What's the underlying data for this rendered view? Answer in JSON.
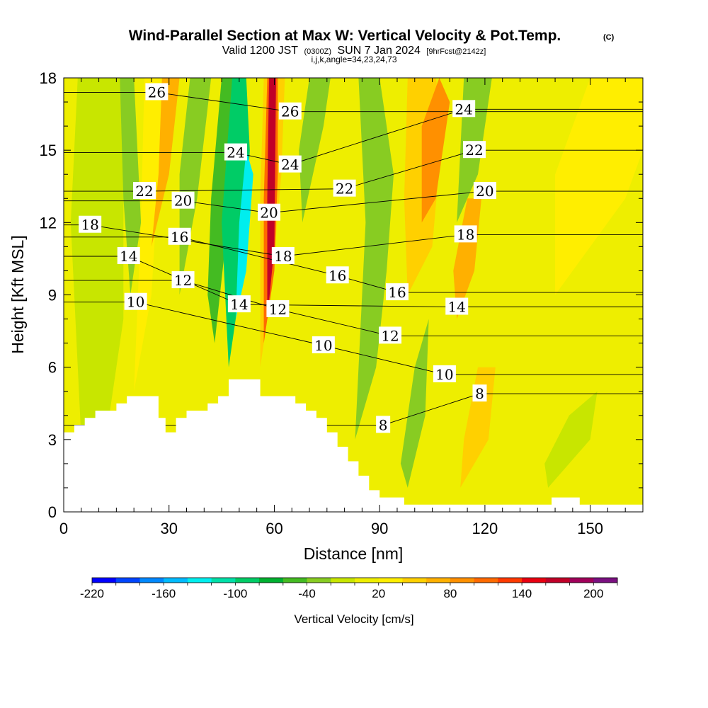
{
  "chart_data": {
    "type": "heatmap",
    "title": "Wind-Parallel Section at Max W: Vertical Velocity & Pot.Temp.",
    "title_mark": "(C)",
    "subtitle_parts": {
      "valid": "Valid 1200 JST",
      "utc": "(0300Z)",
      "date": "SUN 7 Jan 2024",
      "forecast": "[9hrFcst@2142z]"
    },
    "indices": "i,j,k,angle=34,23,24,73",
    "xlabel": "Distance [nm]",
    "ylabel": "Height [Kft MSL]",
    "xlim": [
      0,
      165
    ],
    "ylim": [
      0,
      18
    ],
    "x_ticks": [
      0,
      30,
      60,
      90,
      120,
      150
    ],
    "x_tick_labels": [
      "0",
      "30",
      "60",
      "90",
      "120",
      "150"
    ],
    "y_ticks": [
      0,
      3,
      6,
      9,
      12,
      15,
      18
    ],
    "y_tick_labels": [
      "0",
      "3",
      "6",
      "9",
      "12",
      "15",
      "18"
    ],
    "colorbar": {
      "title": "Vertical Velocity [cm/s]",
      "min": -220,
      "max": 220,
      "step": 20,
      "colors": [
        "#0000ff",
        "#0044ff",
        "#0088ff",
        "#00bbff",
        "#00eeee",
        "#00e0a8",
        "#00cc66",
        "#00b030",
        "#44bb22",
        "#88cc22",
        "#c8e600",
        "#eeee00",
        "#ffee00",
        "#ffd000",
        "#ffb000",
        "#ff9000",
        "#ff6a00",
        "#ff3a00",
        "#e80010",
        "#c00028",
        "#a0005a",
        "#7a1080"
      ],
      "tick_labels": [
        "-220",
        "-160",
        "-100",
        "-40",
        "20",
        "80",
        "140",
        "200"
      ],
      "tick_values": [
        -220,
        -160,
        -100,
        -40,
        20,
        80,
        140,
        200
      ]
    },
    "contour_labels": [
      {
        "text": "26",
        "x": 26.5,
        "y": 17.4
      },
      {
        "text": "26",
        "x": 64.5,
        "y": 16.6
      },
      {
        "text": "24",
        "x": 114,
        "y": 16.7
      },
      {
        "text": "24",
        "x": 49,
        "y": 14.9
      },
      {
        "text": "24",
        "x": 64.5,
        "y": 14.4
      },
      {
        "text": "22",
        "x": 117,
        "y": 15.0
      },
      {
        "text": "22",
        "x": 23,
        "y": 13.3
      },
      {
        "text": "22",
        "x": 80,
        "y": 13.4
      },
      {
        "text": "20",
        "x": 34,
        "y": 12.9
      },
      {
        "text": "20",
        "x": 58.5,
        "y": 12.4
      },
      {
        "text": "20",
        "x": 120,
        "y": 13.3
      },
      {
        "text": "18",
        "x": 7.5,
        "y": 11.9
      },
      {
        "text": "18",
        "x": 62.5,
        "y": 10.6
      },
      {
        "text": "18",
        "x": 114.5,
        "y": 11.5
      },
      {
        "text": "16",
        "x": 33,
        "y": 11.4
      },
      {
        "text": "16",
        "x": 78,
        "y": 9.8
      },
      {
        "text": "16",
        "x": 95,
        "y": 9.1
      },
      {
        "text": "14",
        "x": 18.5,
        "y": 10.6
      },
      {
        "text": "14",
        "x": 50,
        "y": 8.6
      },
      {
        "text": "14",
        "x": 112,
        "y": 8.5
      },
      {
        "text": "12",
        "x": 34,
        "y": 9.6
      },
      {
        "text": "12",
        "x": 61,
        "y": 8.4
      },
      {
        "text": "12",
        "x": 93,
        "y": 7.3
      },
      {
        "text": "10",
        "x": 20.5,
        "y": 8.7
      },
      {
        "text": "10",
        "x": 74,
        "y": 6.9
      },
      {
        "text": "10",
        "x": 108.5,
        "y": 5.7
      },
      {
        "text": "8",
        "x": 91,
        "y": 3.6
      },
      {
        "text": "8",
        "x": 118.5,
        "y": 4.9
      }
    ],
    "terrain_profile": [
      [
        0,
        3.3
      ],
      [
        3,
        3.3
      ],
      [
        3,
        3.6
      ],
      [
        6,
        3.6
      ],
      [
        6,
        3.9
      ],
      [
        9,
        3.9
      ],
      [
        9,
        4.2
      ],
      [
        15,
        4.2
      ],
      [
        15,
        4.5
      ],
      [
        18,
        4.5
      ],
      [
        18,
        4.8
      ],
      [
        27,
        4.8
      ],
      [
        27,
        3.9
      ],
      [
        29,
        3.9
      ],
      [
        29,
        3.3
      ],
      [
        32,
        3.3
      ],
      [
        32,
        3.9
      ],
      [
        35,
        3.9
      ],
      [
        35,
        4.2
      ],
      [
        41,
        4.2
      ],
      [
        41,
        4.5
      ],
      [
        44,
        4.5
      ],
      [
        44,
        4.8
      ],
      [
        47,
        4.8
      ],
      [
        47,
        5.5
      ],
      [
        56,
        5.5
      ],
      [
        56,
        4.8
      ],
      [
        66,
        4.8
      ],
      [
        66,
        4.5
      ],
      [
        69,
        4.5
      ],
      [
        69,
        4.2
      ],
      [
        72,
        4.2
      ],
      [
        72,
        3.9
      ],
      [
        75,
        3.9
      ],
      [
        75,
        3.3
      ],
      [
        78,
        3.3
      ],
      [
        78,
        2.7
      ],
      [
        81,
        2.7
      ],
      [
        81,
        2.1
      ],
      [
        84,
        2.1
      ],
      [
        84,
        1.5
      ],
      [
        87,
        1.5
      ],
      [
        87,
        0.9
      ],
      [
        90,
        0.9
      ],
      [
        90,
        0.6
      ],
      [
        97,
        0.6
      ],
      [
        97,
        0.3
      ],
      [
        125,
        0.3
      ],
      [
        125,
        0.3
      ],
      [
        139,
        0.3
      ],
      [
        139,
        0.6
      ],
      [
        147,
        0.6
      ],
      [
        147,
        0.3
      ],
      [
        165,
        0.3
      ]
    ],
    "w_regions": [
      {
        "value": 10,
        "poly": [
          [
            0,
            0
          ],
          [
            165,
            0
          ],
          [
            165,
            18
          ],
          [
            0,
            18
          ]
        ]
      },
      {
        "value": -20,
        "poly": [
          [
            5,
            3
          ],
          [
            13,
            4
          ],
          [
            17,
            8
          ],
          [
            17,
            18
          ],
          [
            4,
            18
          ],
          [
            2,
            12
          ]
        ]
      },
      {
        "value": -40,
        "poly": [
          [
            19,
            9
          ],
          [
            22,
            12
          ],
          [
            20,
            18
          ],
          [
            16,
            18
          ],
          [
            17,
            13
          ]
        ]
      },
      {
        "value": 30,
        "poly": [
          [
            20,
            5
          ],
          [
            25,
            9
          ],
          [
            27,
            14
          ],
          [
            30,
            18
          ],
          [
            23,
            18
          ],
          [
            22,
            12
          ]
        ]
      },
      {
        "value": 60,
        "poly": [
          [
            25,
            11
          ],
          [
            30,
            14
          ],
          [
            33,
            18
          ],
          [
            28,
            18
          ],
          [
            27,
            14
          ]
        ]
      },
      {
        "value": -40,
        "poly": [
          [
            33,
            9
          ],
          [
            38,
            13
          ],
          [
            42,
            18
          ],
          [
            36,
            18
          ],
          [
            33,
            14
          ]
        ]
      },
      {
        "value": -60,
        "poly": [
          [
            43,
            7
          ],
          [
            46,
            11
          ],
          [
            50,
            18
          ],
          [
            45,
            18
          ],
          [
            42,
            13
          ],
          [
            41,
            9
          ]
        ]
      },
      {
        "value": -100,
        "poly": [
          [
            47,
            6
          ],
          [
            51,
            10
          ],
          [
            53,
            15
          ],
          [
            52,
            18
          ],
          [
            48,
            18
          ],
          [
            45,
            12
          ]
        ]
      },
      {
        "value": -140,
        "poly": [
          [
            49,
            8
          ],
          [
            52,
            10
          ],
          [
            54,
            14
          ],
          [
            52,
            15
          ],
          [
            50,
            12
          ]
        ]
      },
      {
        "value": 40,
        "poly": [
          [
            56,
            6
          ],
          [
            59,
            9
          ],
          [
            62,
            14
          ],
          [
            63,
            18
          ],
          [
            57,
            18
          ],
          [
            56,
            13
          ]
        ]
      },
      {
        "value": 100,
        "poly": [
          [
            57,
            7
          ],
          [
            60,
            10
          ],
          [
            61,
            14
          ],
          [
            61,
            18
          ],
          [
            58,
            18
          ],
          [
            57,
            13
          ]
        ]
      },
      {
        "value": 160,
        "poly": [
          [
            58,
            8
          ],
          [
            60,
            11
          ],
          [
            60.5,
            18
          ],
          [
            58.5,
            18
          ],
          [
            58,
            13
          ]
        ]
      },
      {
        "value": -40,
        "poly": [
          [
            68,
            12
          ],
          [
            74,
            16
          ],
          [
            76,
            18
          ],
          [
            70,
            18
          ],
          [
            67,
            15
          ]
        ]
      },
      {
        "value": -40,
        "poly": [
          [
            83,
            3
          ],
          [
            89,
            6
          ],
          [
            92,
            10
          ],
          [
            94,
            14
          ],
          [
            90,
            18
          ],
          [
            84,
            18
          ],
          [
            86,
            12
          ]
        ]
      },
      {
        "value": 40,
        "poly": [
          [
            98,
            9
          ],
          [
            105,
            11
          ],
          [
            108,
            16
          ],
          [
            106,
            18
          ],
          [
            98,
            18
          ],
          [
            97,
            13
          ]
        ]
      },
      {
        "value": 90,
        "poly": [
          [
            102,
            12
          ],
          [
            106,
            13
          ],
          [
            110,
            17
          ],
          [
            107,
            18
          ],
          [
            102,
            16
          ]
        ]
      },
      {
        "value": -40,
        "poly": [
          [
            112,
            12
          ],
          [
            118,
            14
          ],
          [
            122,
            18
          ],
          [
            114,
            18
          ]
        ]
      },
      {
        "value": 60,
        "poly": [
          [
            112,
            8
          ],
          [
            117,
            10
          ],
          [
            119,
            13
          ],
          [
            115,
            13
          ],
          [
            111,
            10
          ]
        ]
      },
      {
        "value": -30,
        "poly": [
          [
            98,
            1
          ],
          [
            103,
            4
          ],
          [
            104,
            8
          ],
          [
            100,
            6
          ],
          [
            96,
            2
          ]
        ]
      },
      {
        "value": 40,
        "poly": [
          [
            113,
            1
          ],
          [
            121,
            3
          ],
          [
            123,
            6
          ],
          [
            118,
            6
          ],
          [
            114,
            3
          ]
        ]
      },
      {
        "value": -20,
        "poly": [
          [
            138,
            1
          ],
          [
            150,
            3
          ],
          [
            152,
            5
          ],
          [
            144,
            4
          ],
          [
            137,
            2
          ]
        ]
      },
      {
        "value": 30,
        "poly": [
          [
            140,
            9
          ],
          [
            160,
            13
          ],
          [
            165,
            15
          ],
          [
            165,
            18
          ],
          [
            150,
            18
          ],
          [
            140,
            14
          ]
        ]
      }
    ]
  }
}
